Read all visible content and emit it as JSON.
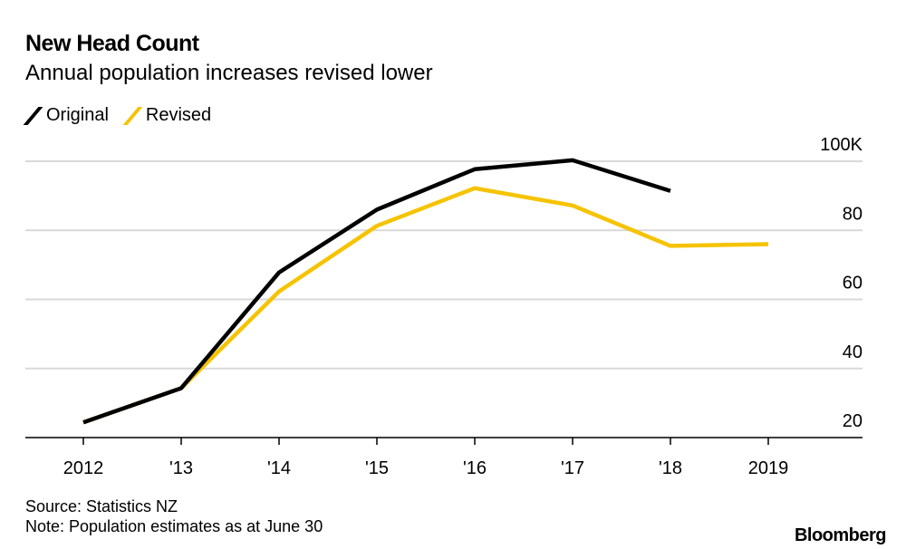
{
  "title": "New Head Count",
  "subtitle": "Annual population increases revised lower",
  "source": "Source: Statistics NZ",
  "note": "Note: Population estimates as at June 30",
  "logo": "Bloomberg",
  "chart_data": {
    "type": "line",
    "title": "New Head Count",
    "subtitle": "Annual population increases revised lower",
    "categories": [
      "2012",
      "'13",
      "'14",
      "'15",
      "'16",
      "'17",
      "'18",
      "2019"
    ],
    "y_ticks": [
      {
        "value": 20,
        "label": "20"
      },
      {
        "value": 40,
        "label": "40"
      },
      {
        "value": 60,
        "label": "60"
      },
      {
        "value": 80,
        "label": "80"
      },
      {
        "value": 100,
        "label": "100K"
      }
    ],
    "ylim": [
      20,
      100
    ],
    "y_axis_position": "right",
    "grid": true,
    "legend_placement": "top-left",
    "series": [
      {
        "name": "Original",
        "color": "#000000",
        "values": [
          24.4,
          34.3,
          67.8,
          86.0,
          97.7,
          100.3,
          91.4,
          null
        ]
      },
      {
        "name": "Revised",
        "color": "#f5c300",
        "values": [
          24.4,
          34.3,
          62.3,
          81.3,
          92.2,
          87.2,
          75.5,
          76.0
        ]
      }
    ]
  }
}
